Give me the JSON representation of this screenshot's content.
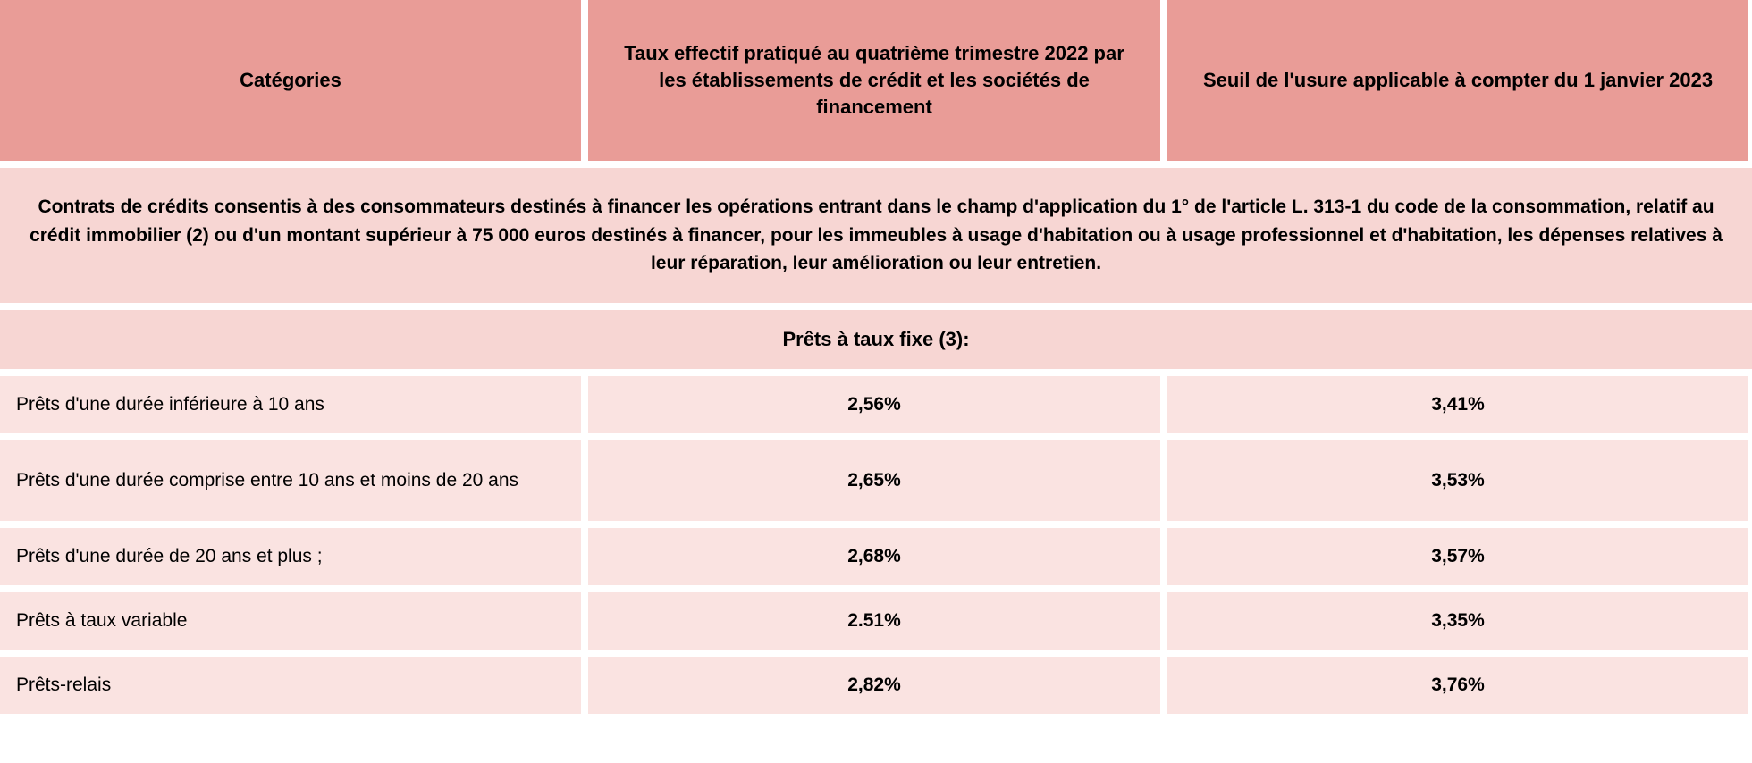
{
  "table": {
    "headers": {
      "col1": "Catégories",
      "col2": "Taux effectif pratiqué au quatrième trimestre 2022 par les établissements de crédit et les sociétés de financement",
      "col3": "Seuil de l'usure applicable à compter du 1 janvier 2023"
    },
    "intro_band": "Contrats de crédits consentis à des consommateurs destinés à financer les opérations entrant dans le champ d'application du 1° de l'article L. 313-1 du code de la consommation, relatif au crédit immobilier (2) ou d'un montant supérieur à 75 000 euros destinés à financer, pour les immeubles à usage d'habitation ou à usage professionnel et d'habitation, les dépenses relatives à leur réparation, leur amélioration ou leur entretien.",
    "section_title": "Prêts à taux fixe (3):",
    "rows": [
      {
        "label": "Prêts d'une durée inférieure à 10 ans",
        "rate": "2,56%",
        "seuil": "3,41%"
      },
      {
        "label": "Prêts d'une durée comprise entre 10 ans et moins de 20 ans",
        "rate": "2,65%",
        "seuil": "3,53%"
      },
      {
        "label": "Prêts d'une durée de 20 ans et plus ;",
        "rate": "2,68%",
        "seuil": "3,57%"
      },
      {
        "label": "Prêts à taux variable",
        "rate": "2.51%",
        "seuil": "3,35%"
      },
      {
        "label": "Prêts-relais",
        "rate": "2,82%",
        "seuil": "3,76%"
      }
    ],
    "colors": {
      "header_bg": "#e99c97",
      "band_bg": "#f7d6d3",
      "row_bg": "#fae3e1",
      "text": "#000000"
    }
  }
}
